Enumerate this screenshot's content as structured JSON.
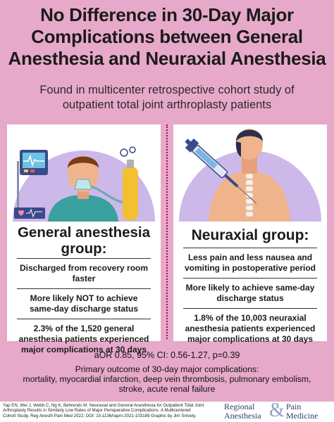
{
  "title_lines": [
    "No Difference in 30-Day Major",
    "Complications between General",
    "Anesthesia and Neuraxial Anesthesia"
  ],
  "subtitle_lines": [
    "Found in multicenter retrospective cohort study of",
    "outpatient total joint arthroplasty patients"
  ],
  "left": {
    "title_lines": [
      "General anesthesia",
      "group:"
    ],
    "item1": "Discharged from recovery room faster",
    "item2_pre": "More likely ",
    "item2_bold": "NOT",
    "item2_post": " to achieve",
    "item2_line2": "same-day discharge status",
    "item3_pct": "2.3%",
    "item3_line1_rest": " of the 1,520 general",
    "item3_line2": "anesthesia patients experienced",
    "item3_line3": "major complications at 30 days"
  },
  "right": {
    "title": "Neuraxial group:",
    "item1_line1": "Less pain and less nausea and",
    "item1_line2": "vomiting in postoperative period",
    "item2_line1": "More likely to achieve same-day",
    "item2_line2": "discharge status",
    "item3_pct": "1.8%",
    "item3_line1_rest": " of the 10,003 neuraxial",
    "item3_line2": "anesthesia patients experienced",
    "item3_line3": "major complications at 30 days"
  },
  "stats": {
    "aor": "aOR 0.85, 95% CI: 0.56-1.27, p=0.39",
    "outcome_lines": [
      "Primary outcome of 30-day major complications:",
      "mortality, myocardial infarction, deep vein thrombosis, pulmonary embolism,",
      "stroke, acute renal failure"
    ]
  },
  "citation_lines": [
    "Yap EN, Wei J, Webb C, Ng K, Behrends M. Neuraxial and General Anesthesia for Outpatient Total Joint",
    "Arthroplasty Results in Similarly Low Rates of Major Perioperative Complications. A Multicentered",
    "Cohort Study. Reg Anesth Pain Med 2022; DOI: 10.1136/rapm-2021-103189 Graphic by Jim Snively."
  ],
  "brand": {
    "w1": "Regional",
    "w2": "Anesthesia",
    "amp": "&",
    "w3": "Pain",
    "w4": "Medicine"
  },
  "icons": [
    "patient-with-oxygen-mask-illustration",
    "spine-injection-illustration"
  ],
  "colors": {
    "background": "#e7a9c9",
    "accent": "#b2004f",
    "brand": "#2d3f6a"
  }
}
